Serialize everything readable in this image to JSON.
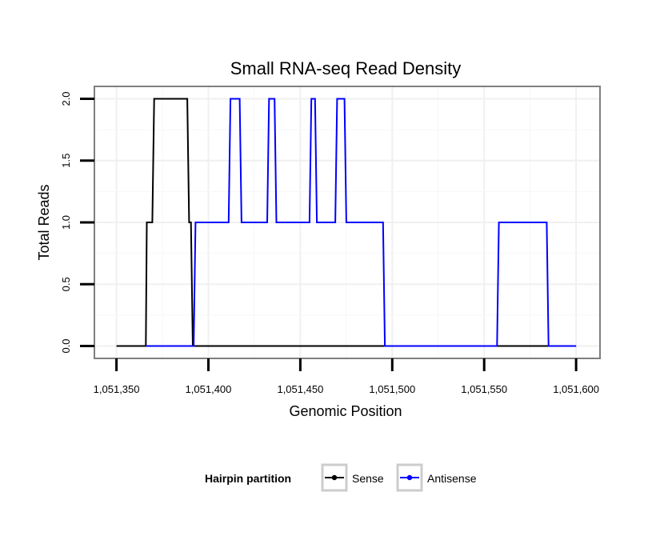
{
  "chart_data": {
    "type": "line",
    "title": "Small RNA-seq Read Density",
    "xlabel": "Genomic Position",
    "ylabel": "Total Reads",
    "xlim": [
      1051338,
      1051613
    ],
    "ylim": [
      -0.1,
      2.1
    ],
    "x_ticks": [
      1051350,
      1051400,
      1051450,
      1051500,
      1051550,
      1051600
    ],
    "x_tick_labels": [
      "1,051,350",
      "1,051,400",
      "1,051,450",
      "1,051,500",
      "1,051,550",
      "1,051,600"
    ],
    "y_ticks": [
      0,
      0.5,
      1,
      1.5,
      2
    ],
    "y_tick_labels": [
      "0.0",
      "0.5",
      "1.0",
      "1.5",
      "2.0"
    ],
    "grid": true,
    "legend": {
      "title": "Hairpin partition",
      "placement": "bottom",
      "entries": [
        "Sense",
        "Antisense"
      ]
    },
    "series": [
      {
        "name": "Sense",
        "color": "#000000",
        "x": [
          1051350,
          1051366,
          1051366.5,
          1051369.5,
          1051370.5,
          1051388.5,
          1051389.5,
          1051390.5,
          1051391.5,
          1051600
        ],
        "y": [
          0,
          0,
          1,
          1,
          2,
          2,
          1,
          1,
          0,
          0
        ]
      },
      {
        "name": "Antisense",
        "color": "#0000ff",
        "x": [
          1051366,
          1051392,
          1051393,
          1051411,
          1051412,
          1051417,
          1051418,
          1051432,
          1051433,
          1051436,
          1051437,
          1051455,
          1051456,
          1051458,
          1051459,
          1051469,
          1051470,
          1051474,
          1051475,
          1051495,
          1051496,
          1051557,
          1051558,
          1051584,
          1051585,
          1051600
        ],
        "y": [
          0,
          0,
          1,
          1,
          2,
          2,
          1,
          1,
          2,
          2,
          1,
          1,
          2,
          2,
          1,
          1,
          2,
          2,
          1,
          1,
          0,
          0,
          1,
          1,
          0,
          0
        ]
      }
    ]
  }
}
